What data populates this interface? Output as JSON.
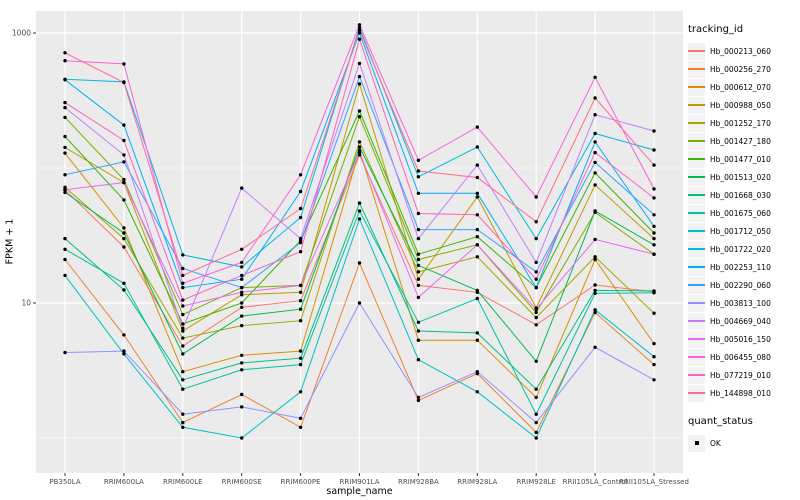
{
  "figure": {
    "background": "#FFFFFF",
    "panel_background": "#EBEBEB",
    "grid_color": "#FFFFFF",
    "axis_text_color": "#4D4D4D",
    "tick_color": "#333333"
  },
  "y_axis": {
    "title": "FPKM + 1",
    "tick_labels": [
      "1000",
      "10"
    ],
    "tick_values": [
      1000,
      10
    ],
    "minor_grid_values": [
      100,
      1
    ]
  },
  "x_axis": {
    "title": "sample_name"
  },
  "legend": {
    "title": "tracking_id"
  },
  "quant_legend": {
    "title": "quant_status",
    "items": [
      {
        "label": "OK"
      }
    ]
  },
  "chart_data": {
    "type": "line",
    "title": "",
    "xlabel": "sample_name",
    "ylabel": "FPKM + 1",
    "y_scale": "log10",
    "ylim": [
      0.5,
      1450
    ],
    "grid": true,
    "legend_position": "right",
    "point_color": "#000000",
    "categories": [
      "PB350LA",
      "RRIM600LA",
      "RRIM600LE",
      "RRIM600SE",
      "RRIM600PE",
      "RRIM901LA",
      "RRIM928BA",
      "RRIM928LA",
      "RRIM928LE",
      "RRII105LA_Control",
      "RRII105LA_Stressed"
    ],
    "series": [
      {
        "name": "Hb_000213_060",
        "color": "#F8766D",
        "values": [
          69,
          26,
          4.8,
          9.3,
          10.4,
          125,
          13.5,
          12,
          6.9,
          13.6,
          12.1
        ]
      },
      {
        "name": "Hb_000256_270",
        "color": "#EA8331",
        "values": [
          21,
          5.8,
          1.3,
          2.1,
          1.2,
          19.8,
          1.9,
          3.0,
          1.1,
          8.5,
          3.5
        ]
      },
      {
        "name": "Hb_000612_070",
        "color": "#D89000",
        "values": [
          129,
          36,
          3.1,
          4.1,
          4.4,
          135,
          5.3,
          5.3,
          2.0,
          21,
          5.0
        ]
      },
      {
        "name": "Hb_000988_050",
        "color": "#C09B00",
        "values": [
          142,
          78,
          6.2,
          11.5,
          12,
          420,
          15,
          61,
          9.2,
          75,
          30
        ]
      },
      {
        "name": "Hb_001252_170",
        "color": "#A3A500",
        "values": [
          72,
          30,
          5.5,
          6.8,
          7.4,
          156,
          17,
          22,
          7.8,
          22,
          8.4
        ]
      },
      {
        "name": "Hb_001427_180",
        "color": "#7CAE00",
        "values": [
          237,
          82,
          8.2,
          13,
          13.5,
          240,
          21,
          27,
          8.5,
          47,
          23
        ]
      },
      {
        "name": "Hb_001477_010",
        "color": "#39B600",
        "values": [
          171,
          58,
          7.0,
          10,
          29,
          265,
          23,
          31,
          13,
          92,
          33
        ]
      },
      {
        "name": "Hb_001513_020",
        "color": "#00BB4E",
        "values": [
          66,
          33,
          4.2,
          8.0,
          9.0,
          143,
          19,
          12.4,
          3.7,
          48,
          27
        ]
      },
      {
        "name": "Hb_001668_030",
        "color": "#00BF7D",
        "values": [
          30,
          12.5,
          2.7,
          3.6,
          3.9,
          55,
          6.2,
          6.0,
          2.3,
          12.4,
          12.3
        ]
      },
      {
        "name": "Hb_001675_060",
        "color": "#00C1A3",
        "values": [
          25,
          14,
          2.3,
          3.2,
          3.5,
          48,
          7.2,
          10.8,
          1.5,
          11.8,
          11.9
        ]
      },
      {
        "name": "Hb_001712_050",
        "color": "#00BFC4",
        "values": [
          16,
          4.2,
          1.2,
          1.0,
          2.2,
          42,
          3.8,
          2.2,
          1.0,
          8.9,
          4.0
        ]
      },
      {
        "name": "Hb_001722_020",
        "color": "#00BAE0",
        "values": [
          454,
          434,
          22.7,
          18.5,
          43,
          1100,
          86,
          143,
          30,
          180,
          136
        ]
      },
      {
        "name": "Hb_002253_110",
        "color": "#00B0F6",
        "values": [
          450,
          208,
          13,
          15,
          67,
          1000,
          65,
          65,
          13,
          156,
          37
        ]
      },
      {
        "name": "Hb_002290_060",
        "color": "#35A2FF",
        "values": [
          89,
          111,
          18,
          13,
          28,
          475,
          35,
          35,
          17,
          110,
          45
        ]
      },
      {
        "name": "Hb_003813_100",
        "color": "#9590FF",
        "values": [
          4.3,
          4.4,
          1.5,
          1.7,
          1.4,
          10,
          2.0,
          3.1,
          1.3,
          4.7,
          2.7
        ]
      },
      {
        "name": "Hb_004669_040",
        "color": "#C77CFF",
        "values": [
          280,
          125,
          6.5,
          71,
          30,
          595,
          30,
          105,
          20,
          248,
          188
        ]
      },
      {
        "name": "Hb_005016_150",
        "color": "#E76BF3",
        "values": [
          69,
          78,
          9.5,
          12,
          13.5,
          130,
          11,
          27,
          9.0,
          29.6,
          23
        ]
      },
      {
        "name": "Hb_006455_080",
        "color": "#FA62DB",
        "values": [
          624,
          590,
          14,
          20,
          89,
          1150,
          114,
          201,
          61,
          470,
          70
        ]
      },
      {
        "name": "Hb_077219_010",
        "color": "#FF62BC",
        "values": [
          305,
          160,
          10.5,
          16,
          24,
          900,
          46,
          45,
          15,
          130,
          60
        ]
      },
      {
        "name": "Hb_144898_010",
        "color": "#FF6A98",
        "values": [
          714,
          430,
          16,
          25,
          50,
          1050,
          95,
          85,
          40,
          330,
          105
        ]
      }
    ]
  }
}
